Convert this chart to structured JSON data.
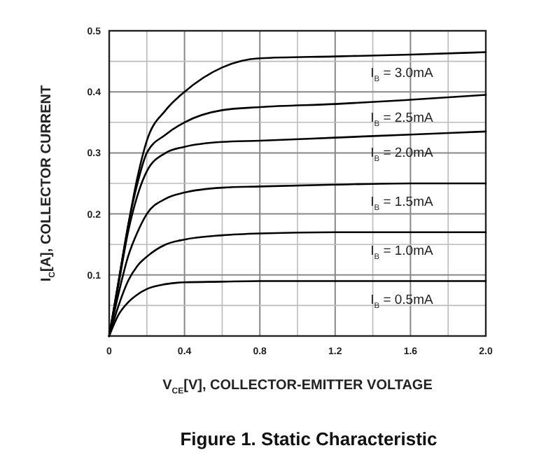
{
  "chart_data": {
    "type": "line",
    "title": "Figure 1. Static Characteristic",
    "xlabel": "V$_{CE}$[V], COLLECTOR-EMITTER VOLTAGE",
    "ylabel": "I$_{C}$[A], COLLECTOR CURRENT",
    "xlim": [
      0,
      2.0
    ],
    "ylim": [
      0,
      0.5
    ],
    "xticks": [
      0,
      {
        "value": 0.2,
        "label": null
      },
      0.4,
      {
        "value": 0.6,
        "label": null
      },
      0.8,
      {
        "value": 1.0,
        "label": null
      },
      1.2,
      {
        "value": 1.4,
        "label": null
      },
      1.6,
      {
        "value": 1.8,
        "label": null
      },
      {
        "value": 2,
        "label": "2.0"
      }
    ],
    "yticks": [
      {
        "value": 0,
        "label": null
      },
      {
        "value": 0.05,
        "label": null
      },
      0.1,
      {
        "value": 0.15,
        "label": null
      },
      0.2,
      {
        "value": 0.25,
        "label": null
      },
      0.3,
      {
        "value": 0.35,
        "label": null
      },
      0.4,
      {
        "value": 0.45,
        "label": null
      },
      0.5
    ],
    "grid": true,
    "marker": "none",
    "line_style": "solid",
    "series": [
      {
        "name": "I$_{B}$ = 3.0mA",
        "color": "#000000",
        "x": [
          0,
          0.05,
          0.1,
          0.15,
          0.2,
          0.3,
          0.4,
          0.6,
          0.8,
          1.2,
          1.6,
          2.0
        ],
        "values": [
          0,
          0.09,
          0.18,
          0.26,
          0.32,
          0.37,
          0.4,
          0.44,
          0.455,
          0.458,
          0.461,
          0.465
        ]
      },
      {
        "name": "I$_{B}$ = 2.5mA",
        "color": "#000000",
        "x": [
          0,
          0.05,
          0.1,
          0.15,
          0.2,
          0.3,
          0.4,
          0.6,
          0.8,
          1.2,
          1.6,
          2.0
        ],
        "values": [
          0,
          0.09,
          0.18,
          0.25,
          0.3,
          0.33,
          0.35,
          0.37,
          0.375,
          0.38,
          0.387,
          0.395
        ]
      },
      {
        "name": "I$_{B}$ = 2.0mA",
        "color": "#000000",
        "x": [
          0,
          0.05,
          0.1,
          0.15,
          0.2,
          0.3,
          0.4,
          0.6,
          0.8,
          1.2,
          1.6,
          2.0
        ],
        "values": [
          0,
          0.085,
          0.17,
          0.23,
          0.27,
          0.3,
          0.31,
          0.318,
          0.32,
          0.325,
          0.33,
          0.335
        ]
      },
      {
        "name": "I$_{B}$ = 1.5mA",
        "color": "#000000",
        "x": [
          0,
          0.05,
          0.1,
          0.15,
          0.2,
          0.3,
          0.4,
          0.6,
          0.8,
          1.2,
          1.6,
          2.0
        ],
        "values": [
          0,
          0.07,
          0.13,
          0.17,
          0.2,
          0.225,
          0.235,
          0.243,
          0.245,
          0.248,
          0.25,
          0.25
        ]
      },
      {
        "name": "I$_{B}$ = 1.0mA",
        "color": "#000000",
        "x": [
          0,
          0.05,
          0.1,
          0.15,
          0.2,
          0.3,
          0.4,
          0.6,
          0.8,
          1.2,
          1.6,
          2.0
        ],
        "values": [
          0,
          0.05,
          0.09,
          0.115,
          0.13,
          0.15,
          0.158,
          0.165,
          0.168,
          0.17,
          0.17,
          0.17
        ]
      },
      {
        "name": "I$_{B}$ = 0.5mA",
        "color": "#000000",
        "x": [
          0,
          0.05,
          0.1,
          0.15,
          0.2,
          0.3,
          0.4,
          0.6,
          0.8,
          1.2,
          1.6,
          2.0
        ],
        "values": [
          0,
          0.035,
          0.055,
          0.068,
          0.077,
          0.085,
          0.088,
          0.089,
          0.09,
          0.09,
          0.09,
          0.09
        ]
      }
    ]
  }
}
